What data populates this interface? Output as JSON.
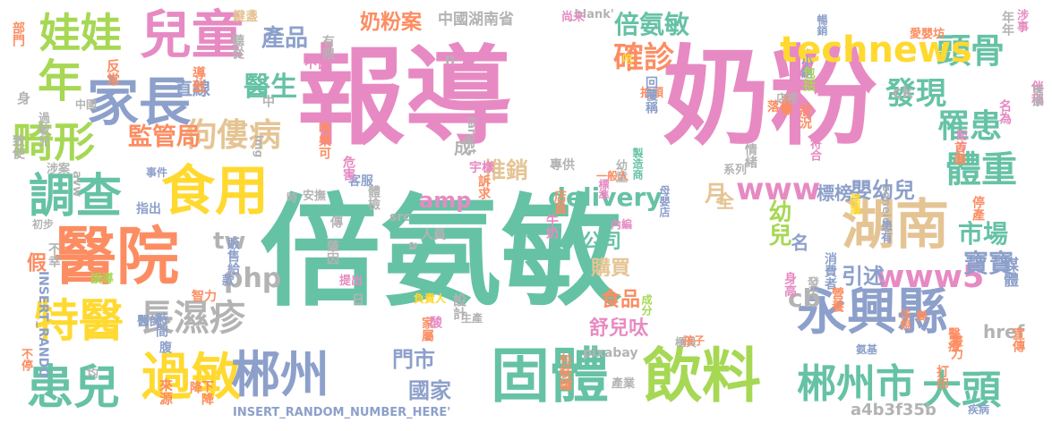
{
  "palette": {
    "teal": "#66c2a5",
    "pink": "#e78ac3",
    "orange": "#fc8d62",
    "lime": "#a6d854",
    "yellow": "#ffd92f",
    "blue": "#8da0cb",
    "tan": "#e5c494",
    "gray": "#b3b3b3"
  },
  "words": [
    {
      "text": "報導",
      "color": "#e78ac3"
    },
    {
      "text": "奶粉",
      "color": "#e78ac3"
    },
    {
      "text": "倍氨敏",
      "color": "#66c2a5"
    },
    {
      "text": "固體",
      "color": "#66c2a5"
    },
    {
      "text": "飲料",
      "color": "#a6d854"
    },
    {
      "text": "醫院",
      "color": "#fc8d62"
    },
    {
      "text": "兒童",
      "color": "#e78ac3"
    },
    {
      "text": "家長",
      "color": "#8da0cb"
    },
    {
      "text": "娃娃",
      "color": "#a6d854"
    },
    {
      "text": "年",
      "color": "#a6d854"
    },
    {
      "text": "畸形",
      "color": "#a6d854"
    },
    {
      "text": "調查",
      "color": "#66c2a5"
    },
    {
      "text": "食用",
      "color": "#ffd92f"
    },
    {
      "text": "特醫",
      "color": "#ffd92f"
    },
    {
      "text": "患兒",
      "color": "#66c2a5"
    },
    {
      "text": "過敏",
      "color": "#ffd92f"
    },
    {
      "text": "郴州",
      "color": "#8da0cb"
    },
    {
      "text": "湖南",
      "color": "#e5c494"
    },
    {
      "text": "永興縣",
      "color": "#8da0cb"
    },
    {
      "text": "郴州市",
      "color": "#66c2a5"
    },
    {
      "text": "大頭",
      "color": "#66c2a5"
    },
    {
      "text": "頭骨",
      "color": "#66c2a5"
    },
    {
      "text": "體重",
      "color": "#66c2a5"
    },
    {
      "text": "罹患",
      "color": "#66c2a5"
    },
    {
      "text": "發現",
      "color": "#66c2a5"
    },
    {
      "text": "確診",
      "color": "#fc8d62"
    },
    {
      "text": "technews",
      "color": "#ffd92f"
    },
    {
      "text": "倍氨敏",
      "color": "#66c2a5"
    },
    {
      "text": "佝僂病",
      "color": "#e5c494"
    },
    {
      "text": "長濕疹",
      "color": "#b3b3b3"
    },
    {
      "text": "醫生",
      "color": "#66c2a5"
    },
    {
      "text": "監管局",
      "color": "#fc8d62"
    },
    {
      "text": "產品",
      "color": "#8da0cb"
    },
    {
      "text": "奶粉案",
      "color": "#fc8d62"
    },
    {
      "text": "www",
      "color": "#e78ac3"
    },
    {
      "text": "www5",
      "color": "#e78ac3"
    },
    {
      "text": "delivery",
      "color": "#66c2a5"
    },
    {
      "text": "amp",
      "color": "#e78ac3"
    },
    {
      "text": "推銷",
      "color": "#e5c494"
    },
    {
      "text": "公司",
      "color": "#66c2a5"
    },
    {
      "text": "購買",
      "color": "#e5c494"
    },
    {
      "text": "食品",
      "color": "#fc8d62"
    },
    {
      "text": "舒兒呔",
      "color": "#e78ac3"
    },
    {
      "text": "國家",
      "color": "#8da0cb"
    },
    {
      "text": "門市",
      "color": "#8da0cb"
    },
    {
      "text": "幼兒",
      "color": "#a6d854"
    },
    {
      "text": "市場",
      "color": "#66c2a5"
    },
    {
      "text": "寶寶",
      "color": "#8da0cb"
    },
    {
      "text": "引述",
      "color": "#8da0cb"
    },
    {
      "text": "嬰幼兒",
      "color": "#8da0cb"
    },
    {
      "text": "標榜",
      "color": "#8da0cb"
    },
    {
      "text": "tw",
      "color": "#b3b3b3"
    },
    {
      "text": "php",
      "color": "#b3b3b3"
    },
    {
      "text": "cb",
      "color": "#b3b3b3"
    },
    {
      "text": "月",
      "color": "#e5c494"
    },
    {
      "text": "全",
      "color": "#e5c494"
    },
    {
      "text": "名",
      "color": "#8da0cb"
    },
    {
      "text": "假",
      "color": "#fc8d62"
    },
    {
      "text": "媒體",
      "color": "#8da0cb"
    },
    {
      "text": "href",
      "color": "#b3b3b3"
    },
    {
      "text": "a4b3f35b",
      "color": "#b3b3b3"
    },
    {
      "text": "中國湖南省",
      "color": "#b3b3b3"
    },
    {
      "text": "INSERT_RANDOM_NUMBER_HERE'",
      "color": "#8da0cb"
    },
    {
      "text": "_blank'",
      "color": "#b3b3b3"
    },
    {
      "text": "n",
      "color": "#b3b3b3"
    },
    {
      "text": "ck",
      "color": "#b3b3b3"
    },
    {
      "text": "成",
      "color": "#b3b3b3"
    },
    {
      "text": "直線",
      "color": "#8da0cb"
    },
    {
      "text": "導致",
      "color": "#fc8d62"
    },
    {
      "text": "反常",
      "color": "#fc8d62"
    },
    {
      "text": "部門",
      "color": "#fc8d62"
    },
    {
      "text": "鍵盞",
      "color": "#e5c494"
    },
    {
      "text": "聽從",
      "color": "#b3b3b3"
    },
    {
      "text": "不良",
      "color": "#e78ac3"
    },
    {
      "text": "有限",
      "color": "#b3b3b3"
    },
    {
      "text": "尚未",
      "color": "#e78ac3"
    },
    {
      "text": "吃",
      "color": "#ffd92f"
    },
    {
      "text": "年年",
      "color": "#b3b3b3"
    },
    {
      "text": "涉事",
      "color": "#e78ac3"
    },
    {
      "text": "愛嬰坊",
      "color": "#fc8d62"
    },
    {
      "text": "小組",
      "color": "#8da0cb"
    },
    {
      "text": "伴稱",
      "color": "#e78ac3"
    },
    {
      "text": "暢銷",
      "color": "#8da0cb"
    },
    {
      "text": "包括",
      "color": "#a6d854"
    },
    {
      "text": "拍頭",
      "color": "#fc8d62"
    },
    {
      "text": "回覆稱",
      "color": "#8da0cb"
    },
    {
      "text": "落後",
      "color": "#fc8d62"
    },
    {
      "text": "診斷",
      "color": "#fc8d62"
    },
    {
      "text": "狀況",
      "color": "#fc8d62"
    },
    {
      "text": "健康",
      "color": "#b3b3b3"
    },
    {
      "text": "名為",
      "color": "#e78ac3"
    },
    {
      "text": "配方",
      "color": "#e78ac3"
    },
    {
      "text": "情緒",
      "color": "#b3b3b3"
    },
    {
      "text": "首圖",
      "color": "#fc8d62"
    },
    {
      "text": "製造商",
      "color": "#66c2a5"
    },
    {
      "text": "幼童",
      "color": "#b3b3b3"
    },
    {
      "text": "系列",
      "color": "#b3b3b3"
    },
    {
      "text": "符合",
      "color": "#e78ac3"
    },
    {
      "text": "專供",
      "color": "#b3b3b3"
    },
    {
      "text": "一般人",
      "color": "#fc8d62"
    },
    {
      "text": "母嬰店",
      "color": "#8da0cb"
    },
    {
      "text": "標準",
      "color": "#e78ac3"
    },
    {
      "text": "店員",
      "color": "#fc8d62"
    },
    {
      "text": "牛奶",
      "color": "#e78ac3"
    },
    {
      "text": "內編",
      "color": "#e78ac3"
    },
    {
      "text": "建議",
      "color": "#ffd92f"
    },
    {
      "text": "zoneid",
      "color": "#b3b3b3"
    },
    {
      "text": "停產",
      "color": "#fc8d62"
    },
    {
      "text": "患有",
      "color": "#8da0cb"
    },
    {
      "text": "身高",
      "color": "#e78ac3"
    },
    {
      "text": "消費者",
      "color": "#8da0cb"
    },
    {
      "text": "負責人",
      "color": "#ffd92f"
    },
    {
      "text": "成分",
      "color": "#a6d854"
    },
    {
      "text": "設計",
      "color": "#b3b3b3"
    },
    {
      "text": "發生",
      "color": "#b3b3b3"
    },
    {
      "text": "營養",
      "color": "#fc8d62"
    },
    {
      "text": "法規",
      "color": "#fc8d62"
    },
    {
      "text": "變",
      "color": "#fc8d62"
    },
    {
      "text": "醫療",
      "color": "#fc8d62"
    },
    {
      "text": "宣傳",
      "color": "#fc8d62"
    },
    {
      "text": "畫力",
      "color": "#fc8d62"
    },
    {
      "text": "打印",
      "color": "#fc8d62"
    },
    {
      "text": "氨基",
      "color": "#8da0cb"
    },
    {
      "text": "櫃員",
      "color": "#b3b3b3"
    },
    {
      "text": "pixabay",
      "color": "#b3b3b3"
    },
    {
      "text": "家屬",
      "color": "#fc8d62"
    },
    {
      "text": "包裝罐",
      "color": "#fc8d62"
    },
    {
      "text": "產業",
      "color": "#b3b3b3"
    },
    {
      "text": "孩子",
      "color": "#fc8d62"
    },
    {
      "text": "酸",
      "color": "#e78ac3"
    },
    {
      "text": "日",
      "color": "#b3b3b3"
    },
    {
      "text": "生產",
      "color": "#b3b3b3"
    },
    {
      "text": "提出",
      "color": "#e78ac3"
    },
    {
      "text": "a",
      "color": "#b3b3b3"
    },
    {
      "text": "人員",
      "color": "#b3b3b3"
    },
    {
      "text": "肇因",
      "color": "#b3b3b3"
    },
    {
      "text": "src",
      "color": "#b3b3b3"
    },
    {
      "text": "傳",
      "color": "#b3b3b3"
    },
    {
      "text": "體檢",
      "color": "#b3b3b3"
    },
    {
      "text": "客服",
      "color": "#8da0cb"
    },
    {
      "text": "危害",
      "color": "#e78ac3"
    },
    {
      "text": "唯樂可",
      "color": "#fc8d62"
    },
    {
      "text": "target",
      "color": "#b3b3b3"
    },
    {
      "text": "訴求",
      "color": "#fc8d62"
    },
    {
      "text": "宇樣",
      "color": "#e78ac3"
    },
    {
      "text": "安撫",
      "color": "#b3b3b3"
    },
    {
      "text": "時",
      "color": "#b3b3b3"
    },
    {
      "text": "中國",
      "color": "#b3b3b3"
    },
    {
      "text": "img",
      "color": "#b3b3b3"
    },
    {
      "text": "中",
      "color": "#b3b3b3"
    },
    {
      "text": "店裡",
      "color": "#b3b3b3"
    },
    {
      "text": "過敏兒",
      "color": "#b3b3b3"
    },
    {
      "text": "身",
      "color": "#b3b3b3"
    },
    {
      "text": "致使",
      "color": "#b3b3b3"
    },
    {
      "text": "涉案",
      "color": "#b3b3b3"
    },
    {
      "text": "avw",
      "color": "#b3b3b3"
    },
    {
      "text": "事件",
      "color": "#8da0cb"
    },
    {
      "text": "指出",
      "color": "#8da0cb"
    },
    {
      "text": "初步",
      "color": "#b3b3b3"
    },
    {
      "text": "不幸",
      "color": "#b3b3b3"
    },
    {
      "text": "INSERT_RANDO",
      "color": "#8da0cb"
    },
    {
      "text": "誤導",
      "color": "#a6d854"
    },
    {
      "text": "販售給",
      "color": "#8da0cb"
    },
    {
      "text": "款",
      "color": "#8da0cb"
    },
    {
      "text": "智力",
      "color": "#fc8d62"
    },
    {
      "text": "時間",
      "color": "#8da0cb"
    },
    {
      "text": "醫師",
      "color": "#8da0cb"
    },
    {
      "text": "腹",
      "color": "#8da0cb"
    },
    {
      "text": "不停",
      "color": "#fc8d62"
    },
    {
      "text": "均",
      "color": "#b3b3b3"
    },
    {
      "text": "來源",
      "color": "#fc8d62"
    },
    {
      "text": "降",
      "color": "#fc8d62"
    },
    {
      "text": "下降",
      "color": "#fc8d62"
    },
    {
      "text": "疾病",
      "color": "#8da0cb"
    },
    {
      "text": "賠償",
      "color": "#8da0cb"
    },
    {
      "text": "含",
      "color": "#fc8d62"
    }
  ]
}
